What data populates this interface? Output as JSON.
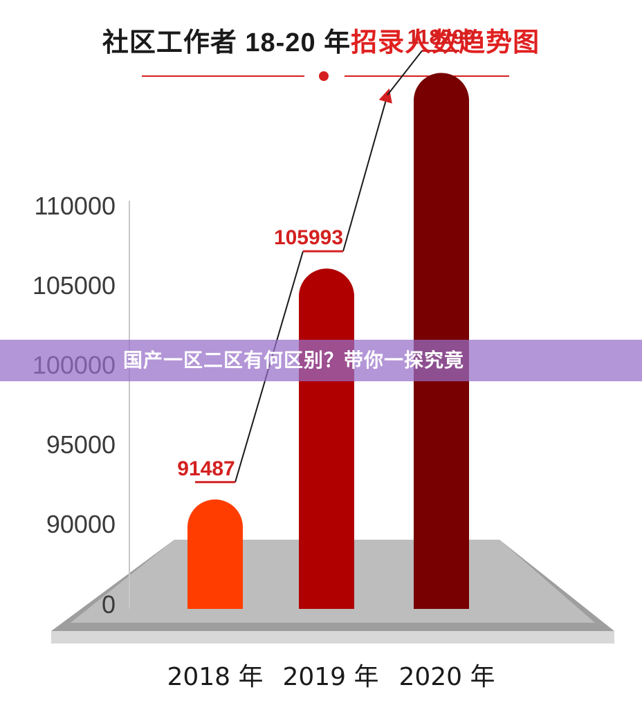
{
  "title": {
    "part1": "社区工作者 18-20 年",
    "part2": "招录人数趋势图"
  },
  "colors": {
    "bar_2018": "#ff3d00",
    "bar_2019": "#b00000",
    "bar_2020": "#780000",
    "label": "#d42020",
    "accent": "#d42020"
  },
  "banner": {
    "text": "国产一区二区有何区别？带你一探究竟"
  },
  "chart_data": {
    "type": "bar",
    "categories": [
      "2018 年",
      "2019 年",
      "2020 年"
    ],
    "values": [
      91487,
      105993,
      118290
    ],
    "value_labels": [
      "91487",
      "105993",
      "118290"
    ],
    "yticks": [
      {
        "value": 0,
        "label": "0"
      },
      {
        "value": 90000,
        "label": "90000"
      },
      {
        "value": 95000,
        "label": "95000"
      },
      {
        "value": 100000,
        "label": "100000"
      },
      {
        "value": 105000,
        "label": "105000"
      },
      {
        "value": 110000,
        "label": "110000"
      }
    ],
    "ylim": [
      0,
      118290
    ],
    "axis_break": true,
    "xlabel": "",
    "ylabel": "",
    "grid": false
  }
}
